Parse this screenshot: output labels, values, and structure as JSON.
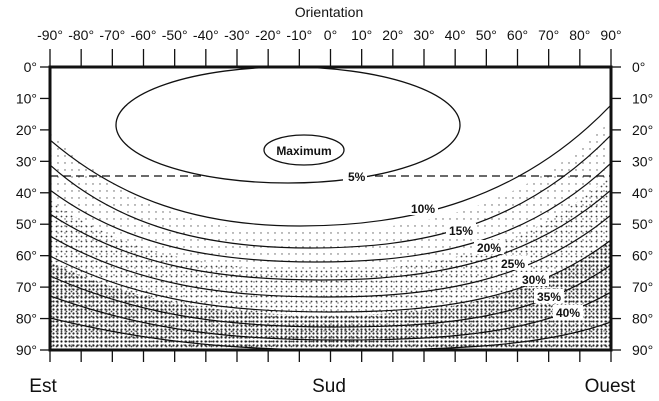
{
  "title": "Orientation",
  "x_ticks": [
    "-90°",
    "-80°",
    "-70°",
    "-60°",
    "-50°",
    "-40°",
    "-30°",
    "-20°",
    "-10°",
    "0°",
    "10°",
    "20°",
    "30°",
    "40°",
    "50°",
    "60°",
    "70°",
    "80°",
    "90°"
  ],
  "y_ticks": [
    "0°",
    "10°",
    "20°",
    "30°",
    "40°",
    "50°",
    "60°",
    "70°",
    "80°",
    "90°"
  ],
  "bottom_labels": {
    "left": "Est",
    "center": "Sud",
    "right": "Ouest"
  },
  "maximum_label": "Maximum",
  "contours": [
    {
      "label": "5%",
      "level": 5
    },
    {
      "label": "10%",
      "level": 10
    },
    {
      "label": "15%",
      "level": 15
    },
    {
      "label": "20%",
      "level": 20
    },
    {
      "label": "25%",
      "level": 25
    },
    {
      "label": "30%",
      "level": 30
    },
    {
      "label": "35%",
      "level": 35
    },
    {
      "label": "40%",
      "level": 40
    }
  ],
  "colors": {
    "ink": "#111111",
    "background": "#ffffff",
    "stipple": "#333333"
  }
}
